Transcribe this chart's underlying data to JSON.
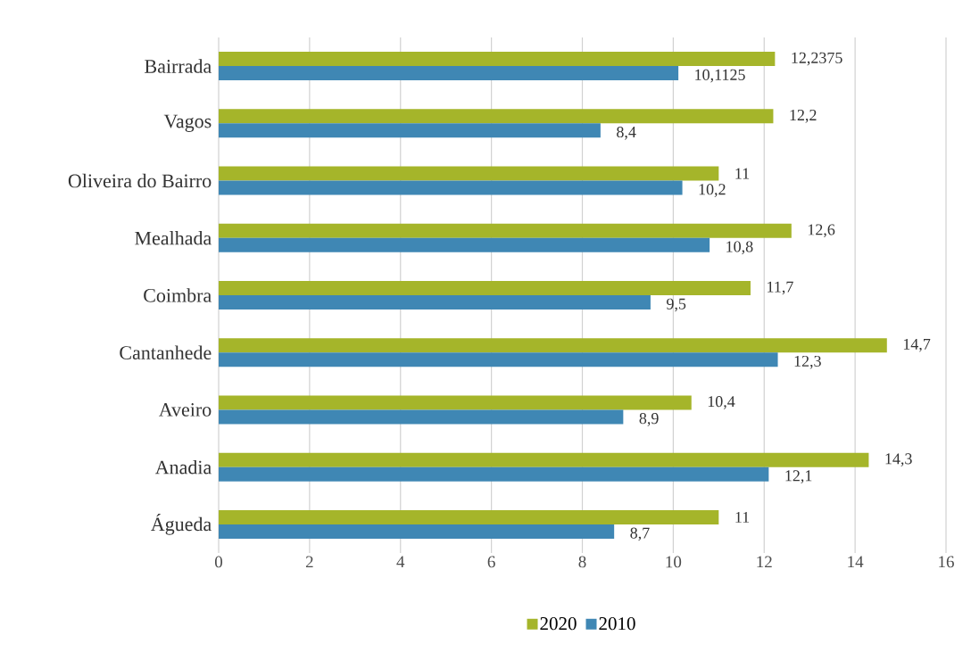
{
  "chart_data": {
    "type": "bar",
    "orientation": "horizontal",
    "categories": [
      "Bairrada",
      "Vagos",
      "Oliveira do Bairro",
      "Mealhada",
      "Coimbra",
      "Cantanhede",
      "Aveiro",
      "Anadia",
      "Águeda"
    ],
    "series": [
      {
        "name": "2020",
        "color": "#a5b52a",
        "values": [
          12.2375,
          12.2,
          11,
          12.6,
          11.7,
          14.7,
          10.4,
          14.3,
          11
        ],
        "value_labels": [
          "12,2375",
          "12,2",
          "11",
          "12,6",
          "11,7",
          "14,7",
          "10,4",
          "14,3",
          "11"
        ]
      },
      {
        "name": "2010",
        "color": "#3f87b4",
        "values": [
          10.1125,
          8.4,
          10.2,
          10.8,
          9.5,
          12.3,
          8.9,
          12.1,
          8.7
        ],
        "value_labels": [
          "10,1125",
          "8,4",
          "10,2",
          "10,8",
          "9,5",
          "12,3",
          "8,9",
          "12,1",
          "8,7"
        ]
      }
    ],
    "xlim": [
      0,
      16
    ],
    "xticks": [
      0,
      2,
      4,
      6,
      8,
      10,
      12,
      14,
      16
    ],
    "grid": "x",
    "legend": "bottom"
  }
}
